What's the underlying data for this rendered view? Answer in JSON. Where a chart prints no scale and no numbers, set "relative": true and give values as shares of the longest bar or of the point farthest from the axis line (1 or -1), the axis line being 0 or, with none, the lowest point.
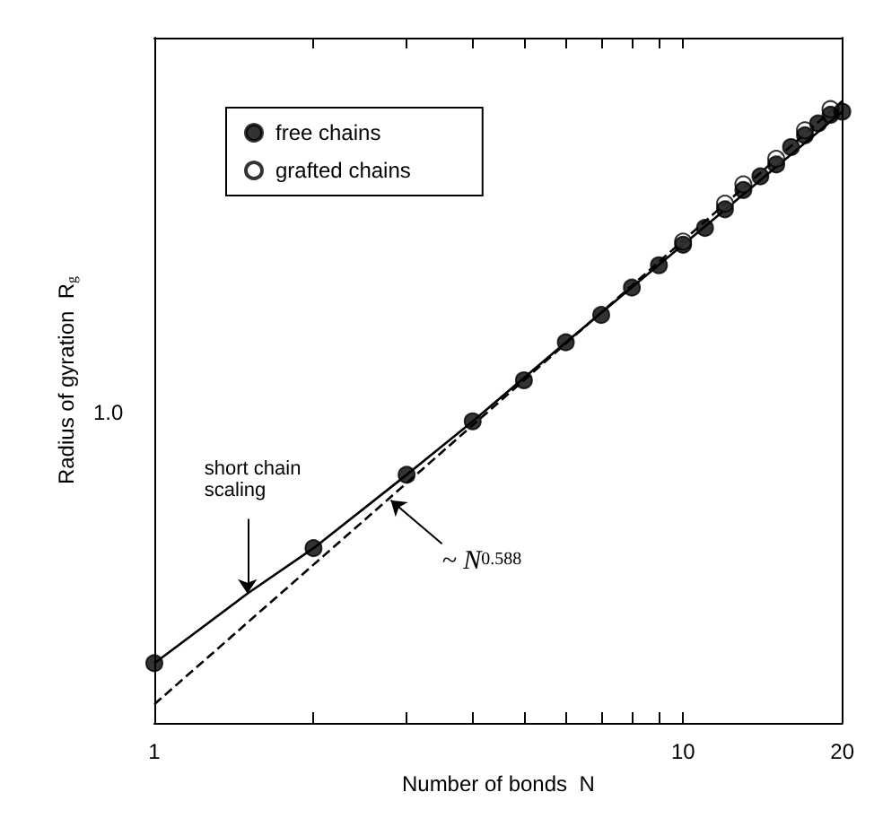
{
  "chart_data": {
    "type": "scatter",
    "xlabel": "Number of bonds  N",
    "ylabel": "Radius of gyration  R$_{g}$",
    "log": "x",
    "relative": true,
    "xlim": [
      1,
      20
    ],
    "xticks": [
      1,
      {
        "value": 2,
        "label": null
      },
      {
        "value": 3,
        "label": null
      },
      {
        "value": 4,
        "label": null
      },
      {
        "value": 5,
        "label": null
      },
      {
        "value": 6,
        "label": null
      },
      {
        "value": 7,
        "label": null
      },
      {
        "value": 8,
        "label": null
      },
      {
        "value": 9,
        "label": null
      },
      10,
      20
    ],
    "legend": "top left",
    "grid": false,
    "marker": "circle",
    "series": [
      {
        "name": "free chains",
        "color": "#000000",
        "x": [
          1,
          2,
          3,
          4,
          5,
          6,
          7,
          8,
          9,
          10,
          11,
          12,
          13,
          14,
          15,
          16,
          17,
          18,
          19,
          20
        ],
        "values": [
          0.096,
          0.281,
          0.399,
          0.485,
          0.551,
          0.612,
          0.656,
          0.7,
          0.736,
          0.769,
          0.796,
          0.826,
          0.857,
          0.879,
          0.898,
          0.926,
          0.945,
          0.964,
          0.978,
          0.983
        ]
      },
      {
        "name": "grafted chains",
        "color": "#ffffff",
        "x": [
          10,
          12,
          13,
          15,
          17,
          19
        ],
        "values": [
          0.774,
          0.835,
          0.866,
          0.907,
          0.953,
          0.987
        ]
      },
      {
        "type": "line",
        "color": "#000000",
        "line_style": "solid",
        "marker": "none",
        "x": [
          1,
          1.5,
          2,
          3,
          4,
          6,
          10,
          20
        ],
        "values": [
          0.096,
          0.208,
          0.281,
          0.399,
          0.485,
          0.612,
          0.769,
          0.983
        ]
      },
      {
        "type": "line",
        "color": "#000000",
        "line_style": "dashed",
        "marker": "none",
        "x": [
          1,
          20
        ],
        "values": [
          0.03,
          1.0
        ]
      }
    ],
    "annotations": [
      {
        "text": "short chain\nscaling",
        "x": 1.5,
        "y": 0.208
      },
      {
        "text": "~ N$^{0.588}$",
        "x": 2.8,
        "y": 0.358
      },
      "1.0"
    ]
  }
}
